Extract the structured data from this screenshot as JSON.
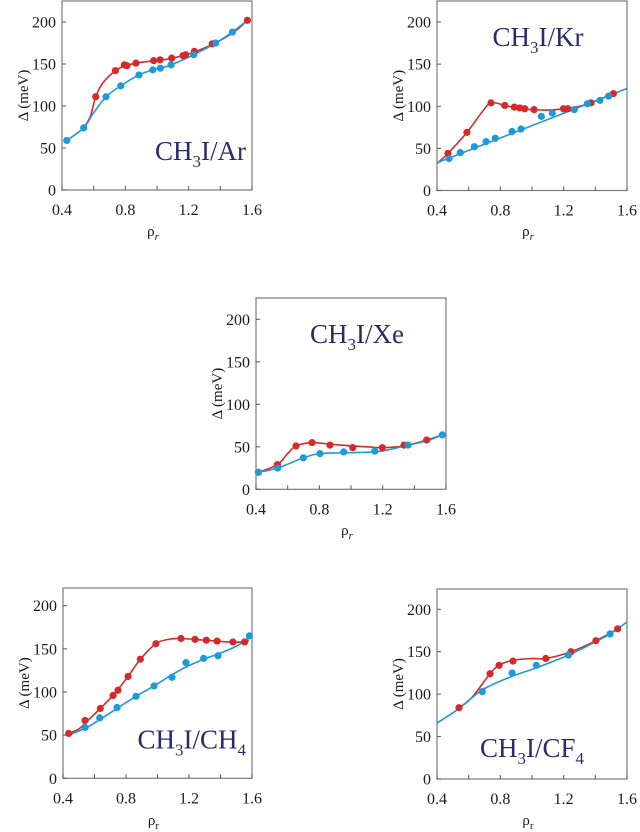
{
  "chart_data": [
    {
      "type": "line",
      "title": "CH3I/Ar",
      "title_parts": {
        "base": "CH",
        "sub": "3",
        "rest": "I/Ar",
        "sub2": ""
      },
      "xlabel": "ρ",
      "xlabel_sub": "r",
      "xlabel_sub_style": "italic",
      "ylabel": "Δ (meV)",
      "xlim": [
        0.4,
        1.6
      ],
      "ylim": [
        0,
        225
      ],
      "xticks": [
        0.4,
        0.8,
        1.2,
        1.6
      ],
      "xticks_minor": [
        0.6,
        1.0,
        1.4
      ],
      "yticks": [
        0,
        50,
        100,
        150,
        200
      ],
      "grid": false,
      "title_position": "bottom-right",
      "series": [
        {
          "name": "red",
          "color": "#d62a2a",
          "points": [
            [
              0.613,
              111
            ],
            [
              0.737,
              142
            ],
            [
              0.794,
              149
            ],
            [
              0.81,
              148
            ],
            [
              0.867,
              151
            ],
            [
              0.979,
              154
            ],
            [
              1.02,
              155
            ],
            [
              1.093,
              157
            ],
            [
              1.164,
              160
            ],
            [
              1.181,
              161
            ],
            [
              1.236,
              165
            ],
            [
              1.349,
              174
            ],
            [
              1.571,
              202
            ]
          ],
          "curve": [
            [
              0.537,
              74
            ],
            [
              0.58,
              88
            ],
            [
              0.613,
              111
            ],
            [
              0.66,
              128
            ],
            [
              0.737,
              142
            ],
            [
              0.8,
              148
            ],
            [
              0.9,
              152
            ],
            [
              1.0,
              154
            ],
            [
              1.1,
              157
            ],
            [
              1.2,
              162
            ],
            [
              1.3,
              169
            ],
            [
              1.4,
              178
            ],
            [
              1.5,
              190
            ],
            [
              1.571,
              202
            ]
          ]
        },
        {
          "name": "blue",
          "color": "#1e9ad6",
          "points": [
            [
              0.43,
              59
            ],
            [
              0.537,
              74
            ],
            [
              0.678,
              111
            ],
            [
              0.771,
              124
            ],
            [
              0.886,
              137
            ],
            [
              0.973,
              143
            ],
            [
              1.021,
              145
            ],
            [
              1.089,
              149
            ],
            [
              1.232,
              161
            ],
            [
              1.371,
              175
            ],
            [
              1.476,
              188
            ]
          ],
          "curve": [
            [
              0.43,
              59
            ],
            [
              0.537,
              74
            ],
            [
              0.6,
              92
            ],
            [
              0.678,
              111
            ],
            [
              0.771,
              124
            ],
            [
              0.886,
              137
            ],
            [
              0.973,
              143
            ],
            [
              1.021,
              145
            ],
            [
              1.089,
              149
            ],
            [
              1.232,
              161
            ],
            [
              1.371,
              175
            ],
            [
              1.476,
              188
            ],
            [
              1.571,
              202
            ]
          ]
        }
      ]
    },
    {
      "type": "line",
      "title": "CH3I/Kr",
      "title_parts": {
        "base": "CH",
        "sub": "3",
        "rest": "I/Kr",
        "sub2": ""
      },
      "xlabel": "ρ",
      "xlabel_sub": "r",
      "xlabel_sub_style": "italic",
      "ylabel": "Δ (meV)",
      "xlim": [
        0.4,
        1.6
      ],
      "ylim": [
        0,
        225
      ],
      "xticks": [
        0.4,
        0.8,
        1.2,
        1.6
      ],
      "xticks_minor": [
        0.6,
        1.0,
        1.4
      ],
      "yticks": [
        0,
        50,
        100,
        150,
        200
      ],
      "grid": false,
      "title_position": "top-center",
      "series": [
        {
          "name": "red",
          "color": "#d62a2a",
          "points": [
            [
              0.469,
              44
            ],
            [
              0.589,
              69
            ],
            [
              0.741,
              104
            ],
            [
              0.828,
              101
            ],
            [
              0.888,
              99
            ],
            [
              0.922,
              98
            ],
            [
              0.954,
              97
            ],
            [
              1.013,
              96
            ],
            [
              1.199,
              97
            ],
            [
              1.226,
              97
            ],
            [
              1.373,
              104
            ],
            [
              1.514,
              115
            ]
          ],
          "curve": [
            [
              0.4,
              32
            ],
            [
              0.469,
              44
            ],
            [
              0.589,
              69
            ],
            [
              0.68,
              92
            ],
            [
              0.741,
              104
            ],
            [
              0.828,
              101
            ],
            [
              0.9,
              98
            ],
            [
              1.0,
              96
            ],
            [
              1.1,
              95.5
            ],
            [
              1.2,
              97
            ],
            [
              1.3,
              100
            ],
            [
              1.373,
              104
            ],
            [
              1.514,
              115
            ]
          ]
        },
        {
          "name": "blue",
          "color": "#1e9ad6",
          "points": [
            [
              0.476,
              38
            ],
            [
              0.547,
              45
            ],
            [
              0.636,
              52
            ],
            [
              0.71,
              58
            ],
            [
              0.768,
              62
            ],
            [
              0.874,
              70
            ],
            [
              0.931,
              73
            ],
            [
              1.059,
              88
            ],
            [
              1.128,
              92
            ],
            [
              1.267,
              96
            ],
            [
              1.35,
              103
            ],
            [
              1.429,
              107
            ],
            [
              1.484,
              112
            ]
          ],
          "curve": [
            [
              0.4,
              33
            ],
            [
              1.6,
              121
            ]
          ]
        }
      ]
    },
    {
      "type": "line",
      "title": "CH3I/Xe",
      "title_parts": {
        "base": "CH",
        "sub": "3",
        "rest": "I/Xe",
        "sub2": ""
      },
      "xlabel": "ρ",
      "xlabel_sub": "r",
      "xlabel_sub_style": "italic",
      "ylabel": "Δ (meV)",
      "xlim": [
        0.4,
        1.6
      ],
      "ylim": [
        0,
        225
      ],
      "xticks": [
        0.4,
        0.8,
        1.2,
        1.6
      ],
      "xticks_minor": [
        0.6,
        1.0,
        1.4
      ],
      "yticks": [
        0,
        50,
        100,
        150,
        200
      ],
      "grid": false,
      "title_position": "top-center",
      "series": [
        {
          "name": "red",
          "color": "#d62a2a",
          "points": [
            [
              0.415,
              20
            ],
            [
              0.535,
              29
            ],
            [
              0.653,
              51
            ],
            [
              0.754,
              55
            ],
            [
              0.867,
              52
            ],
            [
              1.011,
              49
            ],
            [
              1.198,
              49
            ],
            [
              1.335,
              52
            ],
            [
              1.478,
              58
            ]
          ],
          "curve": [
            [
              0.415,
              20
            ],
            [
              0.535,
              29
            ],
            [
              0.6,
              42
            ],
            [
              0.653,
              51
            ],
            [
              0.754,
              55
            ],
            [
              0.867,
              53
            ],
            [
              1.011,
              51
            ],
            [
              1.1,
              50
            ],
            [
              1.198,
              49
            ],
            [
              1.335,
              51
            ],
            [
              1.478,
              58
            ],
            [
              1.577,
              64
            ]
          ]
        },
        {
          "name": "blue",
          "color": "#1e9ad6",
          "points": [
            [
              0.415,
              20
            ],
            [
              0.537,
              25
            ],
            [
              0.699,
              37
            ],
            [
              0.804,
              42
            ],
            [
              0.954,
              44
            ],
            [
              1.15,
              45
            ],
            [
              1.36,
              52
            ],
            [
              1.577,
              64
            ]
          ],
          "curve": [
            [
              0.415,
              20
            ],
            [
              0.537,
              25
            ],
            [
              0.699,
              37
            ],
            [
              0.804,
              42
            ],
            [
              0.954,
              43
            ],
            [
              1.15,
              44
            ],
            [
              1.25,
              47
            ],
            [
              1.36,
              52
            ],
            [
              1.478,
              57
            ],
            [
              1.577,
              64
            ]
          ]
        }
      ]
    },
    {
      "type": "line",
      "title": "CH3I/CH4",
      "title_parts": {
        "base": "CH",
        "sub": "3",
        "rest": "I/CH",
        "sub2": "4"
      },
      "xlabel": "ρ",
      "xlabel_sub": "r",
      "xlabel_sub_style": "normal",
      "ylabel": "Δ (meV)",
      "xlim": [
        0.4,
        1.6
      ],
      "ylim": [
        0,
        225
      ],
      "xticks": [
        0.4,
        0.8,
        1.2,
        1.6
      ],
      "xticks_minor": [
        0.6,
        1.0,
        1.4
      ],
      "yticks": [
        0,
        50,
        100,
        150,
        200
      ],
      "grid": false,
      "title_position": "bottom-right",
      "series": [
        {
          "name": "red",
          "color": "#d62a2a",
          "points": [
            [
              0.436,
              52
            ],
            [
              0.54,
              67
            ],
            [
              0.637,
              81
            ],
            [
              0.718,
              96
            ],
            [
              0.749,
              102
            ],
            [
              0.813,
              118
            ],
            [
              0.891,
              138
            ],
            [
              0.99,
              156
            ],
            [
              1.149,
              162
            ],
            [
              1.238,
              161
            ],
            [
              1.31,
              160
            ],
            [
              1.378,
              159
            ],
            [
              1.479,
              158
            ],
            [
              1.553,
              158
            ]
          ],
          "curve": [
            [
              0.436,
              52
            ],
            [
              0.5,
              57
            ],
            [
              0.54,
              64
            ],
            [
              0.637,
              81
            ],
            [
              0.718,
              96
            ],
            [
              0.749,
              103
            ],
            [
              0.813,
              118
            ],
            [
              0.891,
              138
            ],
            [
              0.99,
              156
            ],
            [
              1.07,
              161
            ],
            [
              1.149,
              162
            ],
            [
              1.3,
              160
            ],
            [
              1.45,
              158
            ],
            [
              1.553,
              158
            ],
            [
              1.58,
              160
            ]
          ]
        },
        {
          "name": "blue",
          "color": "#1e9ad6",
          "points": [
            [
              0.54,
              59
            ],
            [
              0.633,
              70
            ],
            [
              0.743,
              82
            ],
            [
              0.864,
              95
            ],
            [
              0.978,
              107
            ],
            [
              1.092,
              117
            ],
            [
              1.181,
              134
            ],
            [
              1.293,
              139
            ],
            [
              1.384,
              142
            ],
            [
              1.583,
              165
            ]
          ],
          "curve": [
            [
              0.436,
              50
            ],
            [
              0.54,
              58
            ],
            [
              0.633,
              68
            ],
            [
              0.743,
              81
            ],
            [
              0.864,
              95
            ],
            [
              0.978,
              107
            ],
            [
              1.092,
              120
            ],
            [
              1.181,
              129
            ],
            [
              1.293,
              138
            ],
            [
              1.384,
              144
            ],
            [
              1.5,
              153
            ],
            [
              1.583,
              163
            ]
          ]
        }
      ]
    },
    {
      "type": "line",
      "title": "CH3I/CF4",
      "title_parts": {
        "base": "CH",
        "sub": "3",
        "rest": "I/CF",
        "sub2": "4"
      },
      "xlabel": "ρ",
      "xlabel_sub": "r",
      "xlabel_sub_style": "normal",
      "ylabel": "Δ (meV)",
      "xlim": [
        0.4,
        1.6
      ],
      "ylim": [
        0,
        225
      ],
      "xticks": [
        0.4,
        0.8,
        1.2,
        1.6
      ],
      "xticks_minor": [
        0.6,
        1.0,
        1.4
      ],
      "yticks": [
        0,
        50,
        100,
        150,
        200
      ],
      "grid": false,
      "title_position": "bottom-center",
      "series": [
        {
          "name": "red",
          "color": "#d62a2a",
          "points": [
            [
              0.539,
              84
            ],
            [
              0.735,
              124
            ],
            [
              0.792,
              134
            ],
            [
              0.88,
              139
            ],
            [
              1.087,
              142
            ],
            [
              1.246,
              150
            ],
            [
              1.404,
              163
            ],
            [
              1.541,
              177
            ]
          ],
          "curve": [
            [
              0.539,
              84
            ],
            [
              0.62,
              96
            ],
            [
              0.735,
              124
            ],
            [
              0.792,
              134
            ],
            [
              0.88,
              140
            ],
            [
              1.0,
              142
            ],
            [
              1.087,
              142
            ],
            [
              1.246,
              150
            ],
            [
              1.404,
              163
            ],
            [
              1.541,
              177
            ]
          ]
        },
        {
          "name": "blue",
          "color": "#1e9ad6",
          "points": [
            [
              0.686,
              103
            ],
            [
              0.874,
              125
            ],
            [
              1.027,
              134
            ],
            [
              1.23,
              146
            ],
            [
              1.493,
              171
            ]
          ],
          "curve": [
            [
              0.4,
              66
            ],
            [
              0.539,
              83
            ],
            [
              0.686,
              105
            ],
            [
              0.874,
              121
            ],
            [
              1.027,
              131
            ],
            [
              1.23,
              146
            ],
            [
              1.404,
              162
            ],
            [
              1.493,
              171
            ],
            [
              1.6,
              185
            ]
          ]
        }
      ]
    }
  ]
}
